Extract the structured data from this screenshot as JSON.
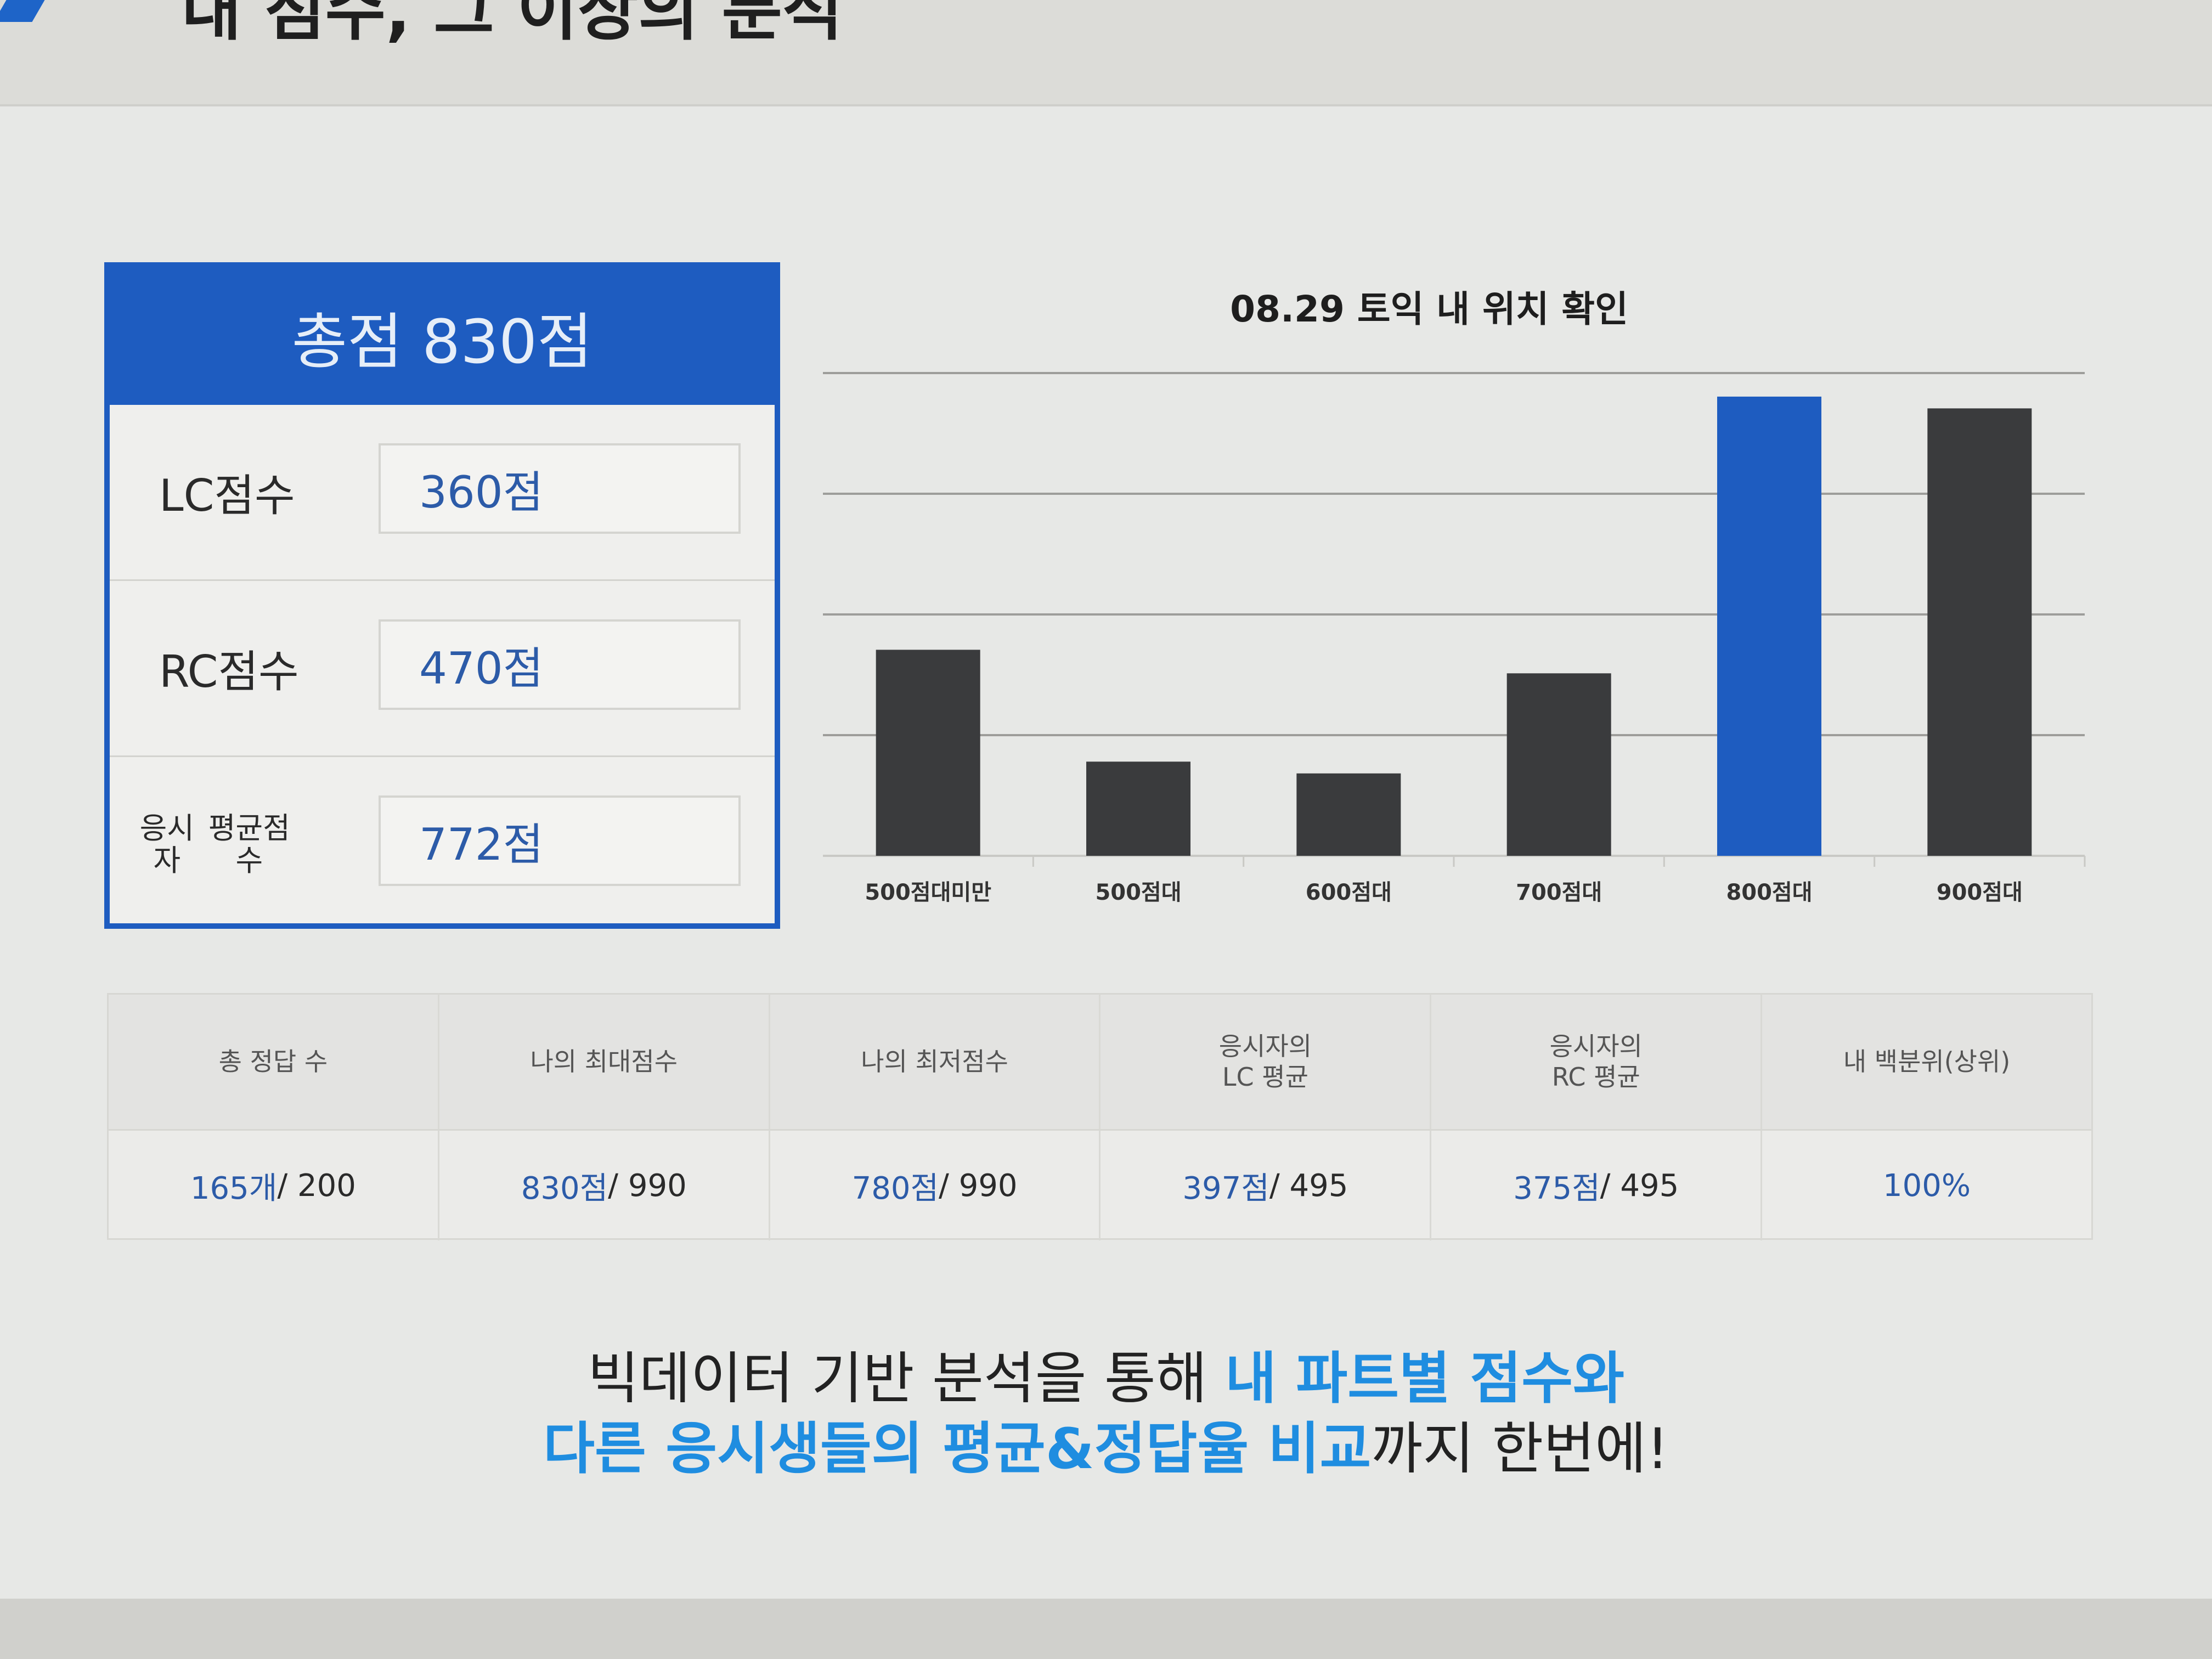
{
  "header": {
    "title": "내 점수, 그 이상의 분석"
  },
  "score_card": {
    "total_label": "총점 830점",
    "rows": [
      {
        "label": "LC점수",
        "value": "360점"
      },
      {
        "label": "RC점수",
        "value": "470점"
      },
      {
        "label_line1": "응시자",
        "label_line2": "평균점수",
        "value": "772점"
      }
    ]
  },
  "chart_data": {
    "type": "bar",
    "title": "08.29 토익 내 위치 확인",
    "categories": [
      "500점대미만",
      "500점대",
      "600점대",
      "700점대",
      "800점대",
      "900점대"
    ],
    "values": [
      35,
      16,
      14,
      31,
      78,
      76
    ],
    "highlight_index": 4,
    "ylim": [
      0,
      82
    ],
    "y_axis_labels_shown": false,
    "grid": true,
    "colors": {
      "bar": "#3a3b3d",
      "highlight": "#1e5cc0",
      "grid": "#9d9d9a"
    }
  },
  "stats_table": {
    "headers": [
      {
        "line1": "총 정답 수",
        "line2": ""
      },
      {
        "line1": "나의 최대점수",
        "line2": ""
      },
      {
        "line1": "나의 최저점수",
        "line2": ""
      },
      {
        "line1": "응시자의",
        "line2": "LC 평균"
      },
      {
        "line1": "응시자의",
        "line2": "RC 평균"
      },
      {
        "line1": "내 백분위(상위)",
        "line2": ""
      }
    ],
    "values": [
      {
        "num": "165개",
        "total": "/ 200"
      },
      {
        "num": "830점",
        "total": "/ 990"
      },
      {
        "num": "780점",
        "total": "/ 990"
      },
      {
        "num": "397점",
        "total": "/ 495"
      },
      {
        "num": "375점",
        "total": "/ 495"
      },
      {
        "num": "100%",
        "total": ""
      }
    ]
  },
  "footer_text": {
    "line1_plain": "빅데이터 기반 분석을 통해 ",
    "line1_highlight": "내 파트별 점수와",
    "line2_highlight": "다른 응시생들의 평균&정답율 비교",
    "line2_plain": "까지 한번에!"
  },
  "colors": {
    "accent": "#1e5cc0",
    "highlight_text": "#1f8de0",
    "value_text": "#2c5ba8"
  }
}
